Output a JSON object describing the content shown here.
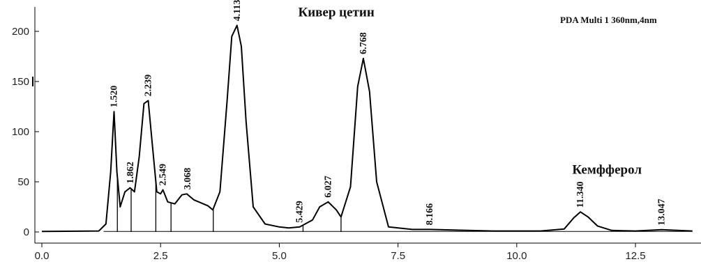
{
  "chart_data": {
    "type": "line",
    "header": "PDA Multi 1 360nm,4nm",
    "x_ticks": [
      "0.0",
      "2.5",
      "5.0",
      "7.5",
      "10.0",
      "12.5"
    ],
    "y_ticks": [
      "0",
      "50",
      "100",
      "150",
      "200"
    ],
    "xlim": [
      0,
      13.7
    ],
    "ylim": [
      -10,
      215
    ],
    "series": [
      {
        "x": [
          0,
          1.2,
          1.35,
          1.45,
          1.52,
          1.58,
          1.65,
          1.75,
          1.86,
          1.95,
          2.05,
          2.15,
          2.24,
          2.32,
          2.42,
          2.5,
          2.55,
          2.65,
          2.8,
          2.95,
          3.05,
          3.2,
          3.35,
          3.5,
          3.6,
          3.75,
          3.9,
          4.0,
          4.11,
          4.2,
          4.3,
          4.45,
          4.7,
          5.0,
          5.2,
          5.43,
          5.7,
          5.85,
          6.03,
          6.2,
          6.3,
          6.5,
          6.65,
          6.77,
          6.9,
          7.05,
          7.3,
          7.8,
          8.17,
          8.6,
          9.5,
          10.5,
          11.0,
          11.2,
          11.34,
          11.5,
          11.7,
          12.0,
          12.5,
          13.05,
          13.7
        ],
        "values": [
          0.5,
          1,
          8,
          60,
          120,
          60,
          25,
          40,
          44,
          40,
          75,
          128,
          131,
          90,
          40,
          38,
          42,
          30,
          28,
          37,
          38,
          32,
          29,
          26,
          22,
          40,
          130,
          195,
          206,
          185,
          110,
          25,
          8,
          5,
          4,
          5,
          12,
          25,
          30,
          22,
          15,
          45,
          145,
          173,
          140,
          50,
          5,
          2.5,
          2.5,
          2,
          1,
          1,
          3,
          14,
          20,
          15,
          6,
          1.5,
          1,
          2.2,
          1
        ]
      }
    ],
    "baseline_segments": [
      [
        1.3,
        5.1
      ],
      [
        5.1,
        5.5
      ],
      [
        5.5,
        8.4
      ],
      [
        8.4,
        10.8
      ],
      [
        10.8,
        12.0
      ],
      [
        12.0,
        13.7
      ]
    ],
    "peak_markers": [
      1.59,
      1.88,
      2.4,
      2.72,
      3.61,
      5.5,
      6.3
    ],
    "peak_labels": [
      {
        "x": 1.52,
        "y": 120,
        "text": "1.520"
      },
      {
        "x": 1.862,
        "y": 44,
        "text": "1.862"
      },
      {
        "x": 2.239,
        "y": 131,
        "text": "2.239"
      },
      {
        "x": 2.549,
        "y": 42,
        "text": "2.549"
      },
      {
        "x": 3.068,
        "y": 38,
        "text": "3.068"
      },
      {
        "x": 4.113,
        "y": 206,
        "text": "4.113"
      },
      {
        "x": 5.429,
        "y": 5,
        "text": "5.429"
      },
      {
        "x": 6.027,
        "y": 30,
        "text": "6.027"
      },
      {
        "x": 6.768,
        "y": 173,
        "text": "6.768"
      },
      {
        "x": 8.166,
        "y": 2.5,
        "text": "8.166"
      },
      {
        "x": 11.34,
        "y": 20,
        "text": "11.340"
      },
      {
        "x": 13.047,
        "y": 2.2,
        "text": "13.047"
      }
    ],
    "annotations": [
      {
        "x": 6.2,
        "y": 215,
        "text": "Кивер цетин"
      },
      {
        "x": 11.9,
        "y": 58,
        "text": "Кемфферол"
      }
    ],
    "colors": {
      "line": "#000000",
      "baseline": "#000000",
      "marker": "#000000"
    }
  }
}
